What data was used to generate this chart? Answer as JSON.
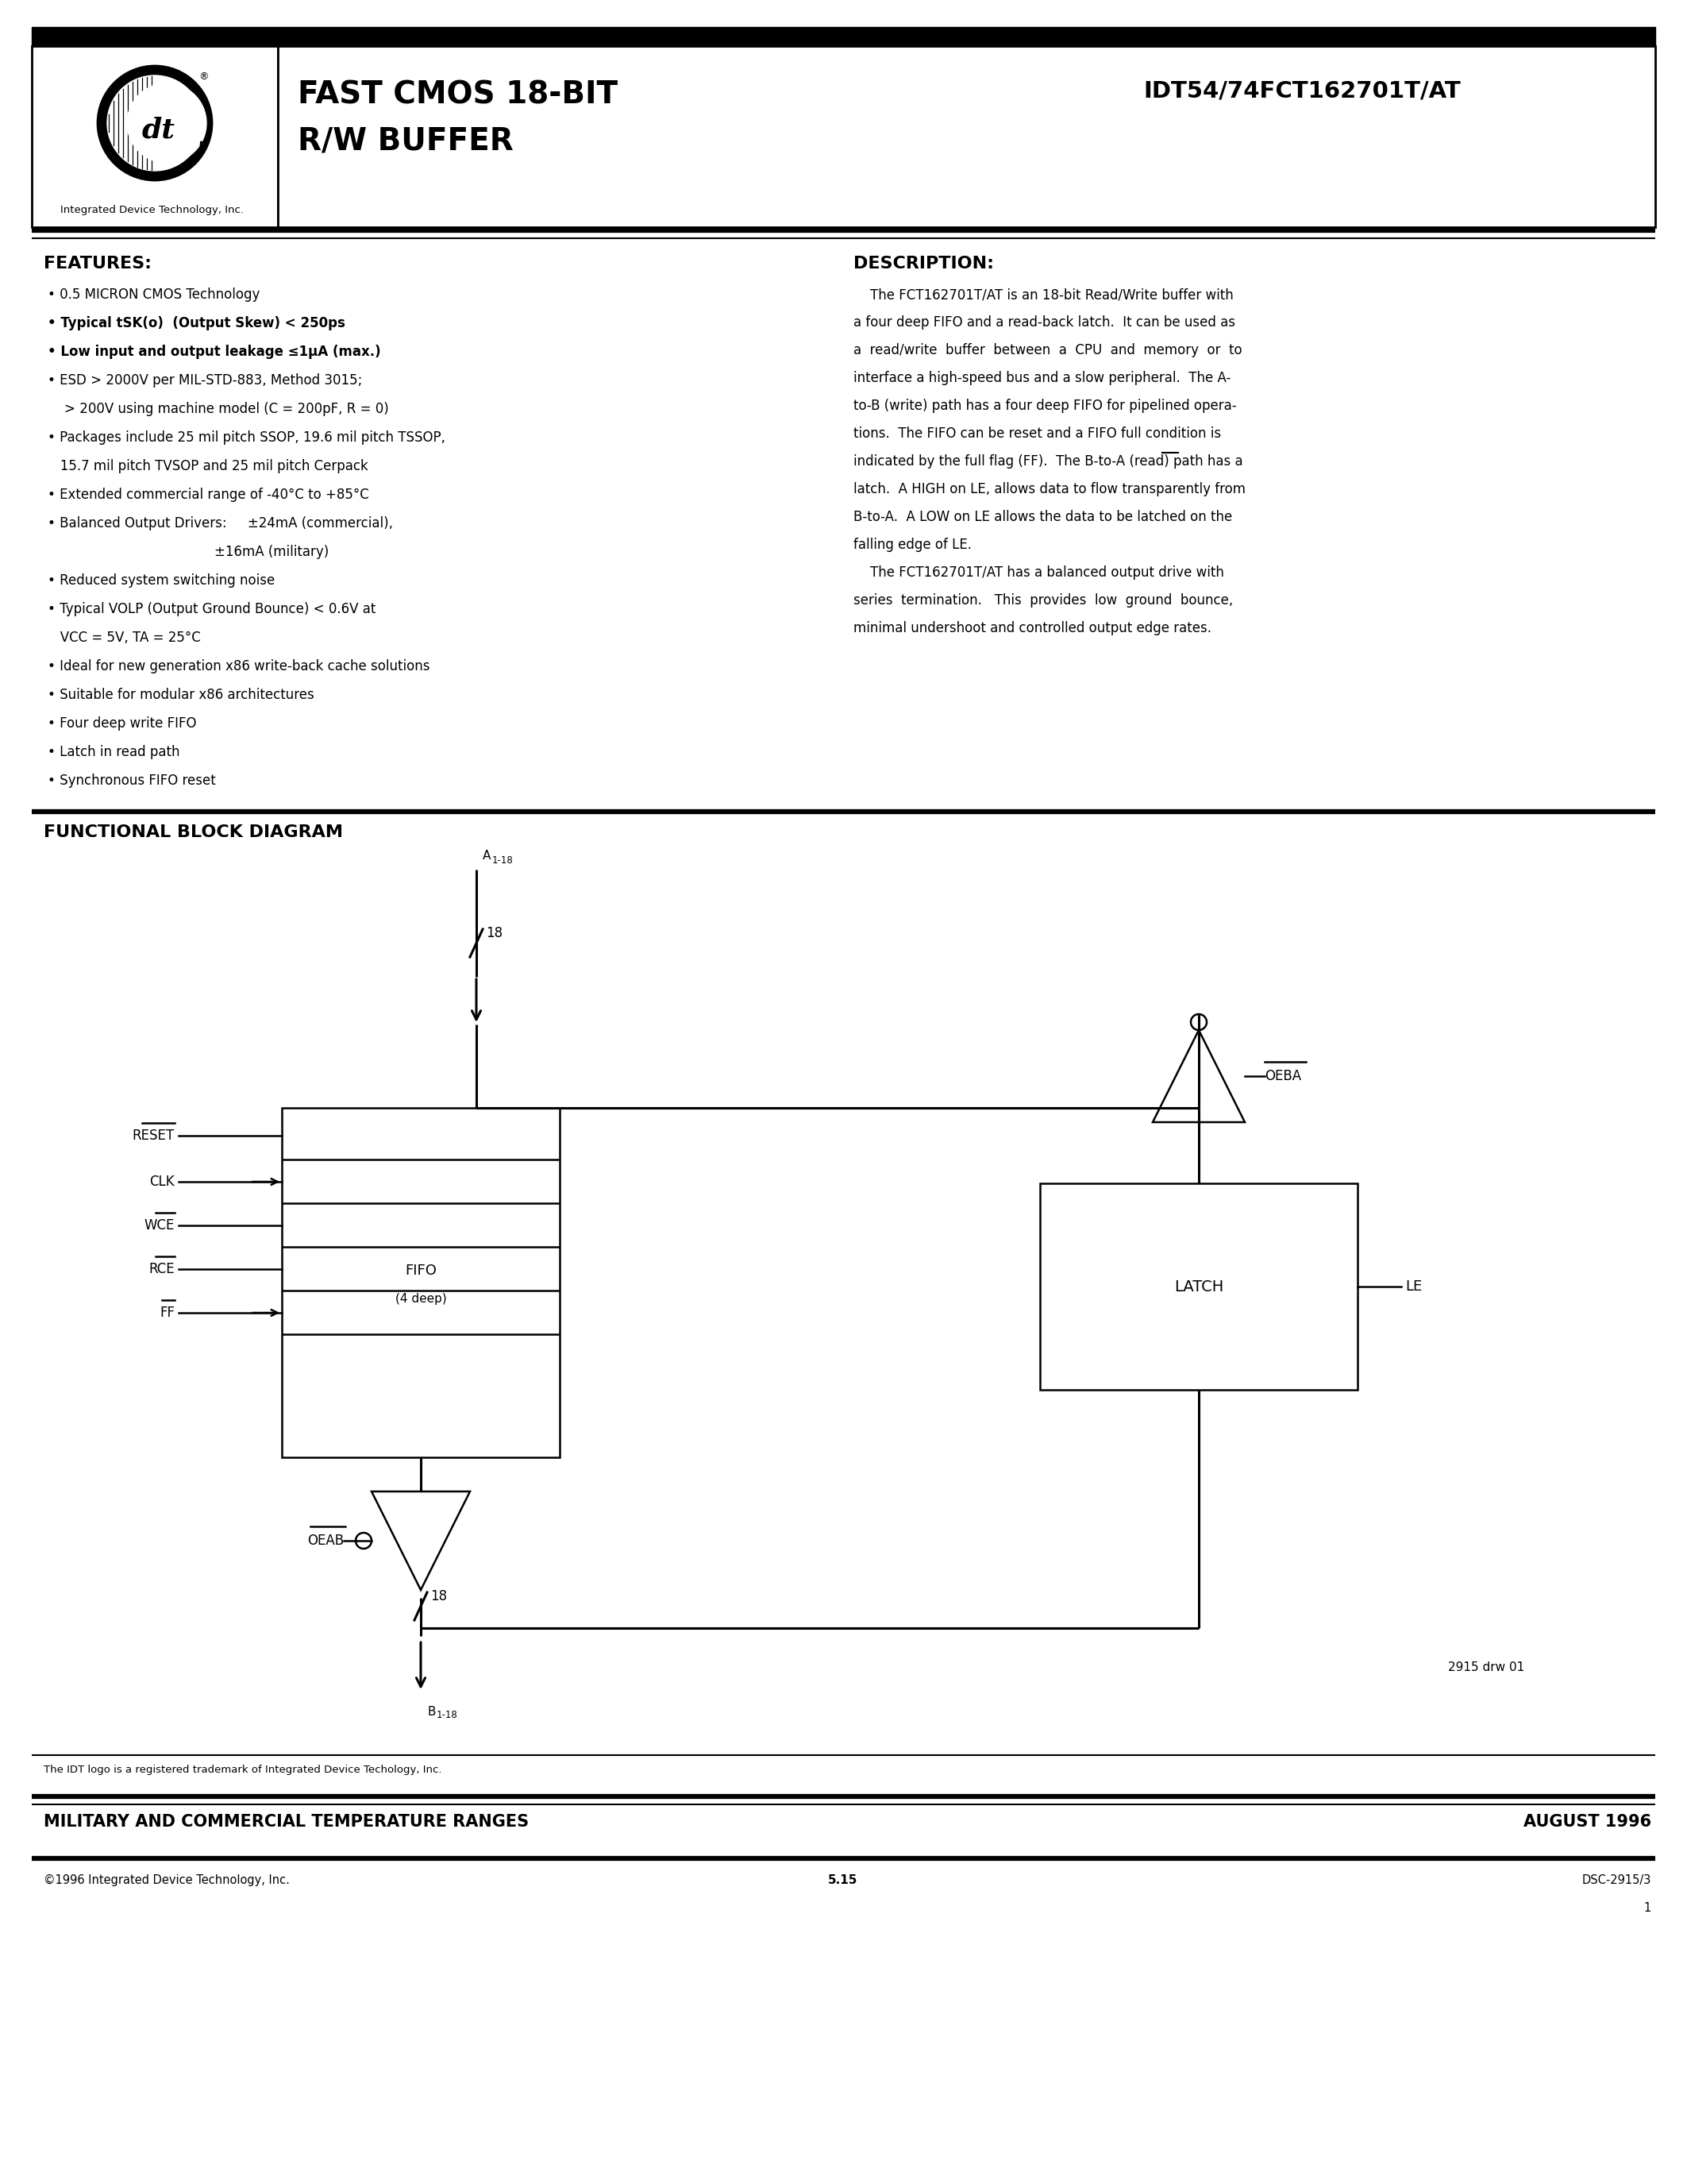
{
  "title_part1": "FAST CMOS 18-BIT",
  "title_part2": "R/W BUFFER",
  "part_number": "IDT54/74FCT162701T/AT",
  "company": "Integrated Device Technology, Inc.",
  "features_title": "FEATURES:",
  "description_title": "DESCRIPTION:",
  "diagram_title": "FUNCTIONAL BLOCK DIAGRAM",
  "footer_trademark": "The IDT logo is a registered trademark of Integrated Device Techology, Inc.",
  "footer_mil_comm": "MILITARY AND COMMERCIAL TEMPERATURE RANGES",
  "footer_date": "AUGUST 1996",
  "footer_copyright": "©1996 Integrated Device Technology, Inc.",
  "footer_page": "5.15",
  "footer_doc1": "DSC-2915/3",
  "footer_doc2": "1",
  "desc_lines": [
    "    The FCT162701T/AT is an 18-bit Read/Write buffer with",
    "a four deep FIFO and a read-back latch.  It can be used as",
    "a  read/write  buffer  between  a  CPU  and  memory  or  to",
    "interface a high-speed bus and a slow peripheral.  The A-",
    "to-B (write) path has a four deep FIFO for pipelined opera-",
    "tions.  The FIFO can be reset and a FIFO full condition is",
    "indicated by the full flag (FF).  The B-to-A (read) path has a",
    "latch.  A HIGH on LE, allows data to flow transparently from",
    "B-to-A.  A LOW on LE allows the data to be latched on the",
    "falling edge of LE.",
    "    The FCT162701T/AT has a balanced output drive with",
    "series  termination.   This  provides  low  ground  bounce,",
    "minimal undershoot and controlled output edge rates."
  ]
}
